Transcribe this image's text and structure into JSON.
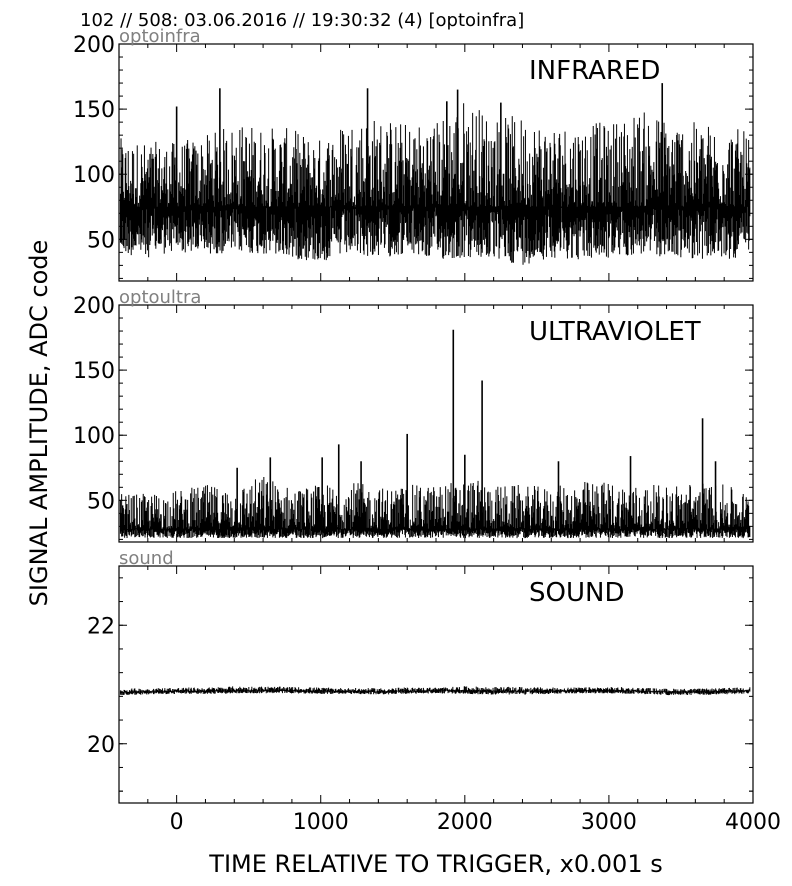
{
  "header": {
    "text": "102 // 508:   03.06.2016 // 19:30:32 (4)  [optoinfra]"
  },
  "ylabel": "SIGNAL AMPLITUDE,  ADC code",
  "xlabel": "TIME RELATIVE TO TRIGGER,   x0.001 s",
  "colors": {
    "trace": "#000000",
    "channel_label": "#808080",
    "axes": "#000000",
    "background": "#ffffff"
  },
  "chart_data": [
    {
      "type": "line",
      "channel": "optoinfra",
      "title": "INFRARED",
      "xlim": [
        -400,
        4000
      ],
      "ylim": [
        18,
        200
      ],
      "x_ticks": [
        0,
        1000,
        2000,
        3000,
        4000
      ],
      "y_ticks": [
        50,
        100,
        150,
        200
      ],
      "x_tick_labels_visible": false,
      "grid": false,
      "series": [
        {
          "x": [
            -400,
            -200,
            0,
            200,
            400,
            600,
            800,
            1000,
            1200,
            1400,
            1600,
            1800,
            2000,
            2200,
            2400,
            2600,
            2800,
            3000,
            3200,
            3400,
            3600,
            3800,
            4000
          ],
          "mean": [
            75,
            75,
            75,
            75,
            75,
            75,
            75,
            75,
            75,
            75,
            75,
            75,
            75,
            75,
            75,
            75,
            75,
            75,
            75,
            75,
            75,
            75,
            75
          ],
          "min": [
            38,
            36,
            40,
            38,
            40,
            38,
            35,
            32,
            38,
            36,
            38,
            34,
            35,
            34,
            30,
            36,
            34,
            35,
            38,
            36,
            35,
            34,
            37
          ],
          "max": [
            128,
            125,
            125,
            130,
            140,
            138,
            135,
            128,
            145,
            145,
            140,
            142,
            160,
            145,
            145,
            140,
            140,
            140,
            150,
            145,
            140,
            140,
            130
          ]
        }
      ],
      "peaks": [
        {
          "x": 0,
          "y": 152
        },
        {
          "x": 300,
          "y": 166
        },
        {
          "x": 1325,
          "y": 166
        },
        {
          "x": 1875,
          "y": 156
        },
        {
          "x": 1950,
          "y": 165
        },
        {
          "x": 2250,
          "y": 155
        },
        {
          "x": 3370,
          "y": 170
        }
      ]
    },
    {
      "type": "line",
      "channel": "optoultra",
      "title": "ULTRAVIOLET",
      "xlim": [
        -400,
        4000
      ],
      "ylim": [
        18,
        200
      ],
      "x_ticks": [
        0,
        1000,
        2000,
        3000,
        4000
      ],
      "y_ticks": [
        50,
        100,
        150,
        200
      ],
      "x_tick_labels_visible": false,
      "grid": false,
      "series": [
        {
          "x": [
            -400,
            -200,
            0,
            200,
            400,
            600,
            800,
            1000,
            1200,
            1400,
            1600,
            1800,
            2000,
            2200,
            2400,
            2600,
            2800,
            3000,
            3200,
            3400,
            3600,
            3800,
            4000
          ],
          "mean": [
            28,
            28,
            28,
            28,
            28,
            28,
            28,
            28,
            28,
            28,
            28,
            28,
            28,
            28,
            28,
            28,
            28,
            28,
            28,
            28,
            28,
            28,
            28
          ],
          "min": [
            21,
            21,
            21,
            21,
            21,
            21,
            21,
            21,
            21,
            21,
            21,
            21,
            21,
            21,
            21,
            21,
            21,
            21,
            21,
            21,
            21,
            21,
            21
          ],
          "max": [
            55,
            55,
            58,
            62,
            60,
            70,
            60,
            62,
            65,
            60,
            62,
            62,
            68,
            62,
            62,
            60,
            65,
            65,
            62,
            62,
            65,
            62,
            55
          ]
        }
      ],
      "peaks": [
        {
          "x": 420,
          "y": 75
        },
        {
          "x": 650,
          "y": 83
        },
        {
          "x": 1010,
          "y": 83
        },
        {
          "x": 1125,
          "y": 93
        },
        {
          "x": 1280,
          "y": 80
        },
        {
          "x": 1600,
          "y": 101
        },
        {
          "x": 1920,
          "y": 181
        },
        {
          "x": 2000,
          "y": 85
        },
        {
          "x": 2120,
          "y": 142
        },
        {
          "x": 2650,
          "y": 80
        },
        {
          "x": 3150,
          "y": 84
        },
        {
          "x": 3650,
          "y": 113
        },
        {
          "x": 3740,
          "y": 80
        }
      ]
    },
    {
      "type": "line",
      "channel": "sound",
      "title": "SOUND",
      "xlim": [
        -400,
        4000
      ],
      "ylim": [
        19,
        23
      ],
      "x_ticks": [
        0,
        1000,
        2000,
        3000,
        4000
      ],
      "y_ticks": [
        20,
        22
      ],
      "x_tick_labels": [
        "0",
        "1000",
        "2000",
        "3000",
        "4000"
      ],
      "x_tick_labels_visible": true,
      "grid": false,
      "series": [
        {
          "x": [
            -400,
            -200,
            0,
            200,
            400,
            600,
            800,
            1000,
            1200,
            1400,
            1600,
            1800,
            2000,
            2200,
            2400,
            2600,
            2800,
            3000,
            3200,
            3400,
            3600,
            3800,
            4000
          ],
          "mean": [
            20.87,
            20.88,
            20.89,
            20.89,
            20.9,
            20.9,
            20.9,
            20.89,
            20.89,
            20.88,
            20.89,
            20.9,
            20.9,
            20.89,
            20.89,
            20.89,
            20.9,
            20.9,
            20.89,
            20.88,
            20.88,
            20.89,
            20.9
          ],
          "min": [
            20.82,
            20.83,
            20.84,
            20.84,
            20.85,
            20.85,
            20.85,
            20.84,
            20.84,
            20.83,
            20.84,
            20.85,
            20.84,
            20.83,
            20.83,
            20.84,
            20.85,
            20.85,
            20.84,
            20.82,
            20.82,
            20.83,
            20.85
          ],
          "max": [
            20.93,
            20.94,
            20.95,
            20.95,
            20.97,
            20.97,
            20.96,
            20.95,
            20.94,
            20.94,
            20.95,
            20.95,
            20.97,
            20.96,
            20.96,
            20.95,
            20.95,
            20.96,
            20.95,
            20.93,
            20.93,
            20.94,
            20.96
          ]
        }
      ]
    }
  ]
}
